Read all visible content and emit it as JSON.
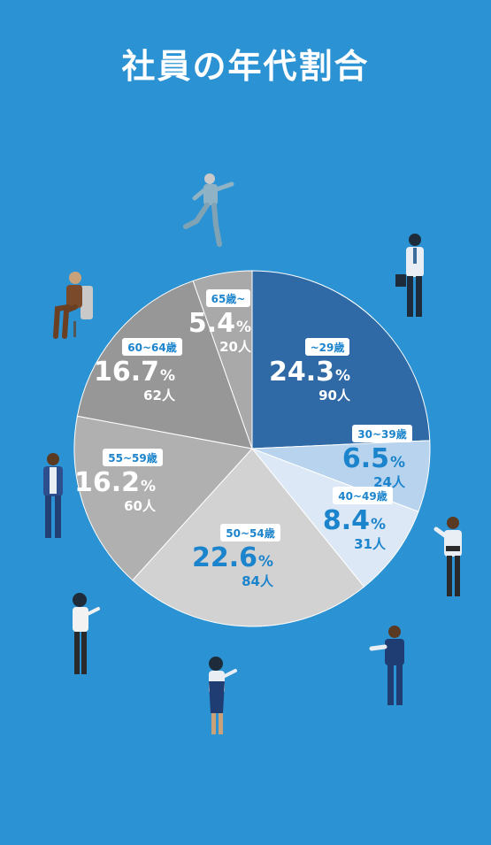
{
  "title": "社員の年代割合",
  "colors": {
    "background": "#2B92D3",
    "label_dark": "#1C84CC",
    "label_light": "#ffffff"
  },
  "chart_data": {
    "type": "pie",
    "title": "社員の年代割合",
    "unit_percent": "%",
    "unit_count": "人",
    "slices": [
      {
        "label": "~29歳",
        "percent": 24.3,
        "count": 90,
        "color": "#2F6AA6"
      },
      {
        "label": "30~39歳",
        "percent": 6.5,
        "count": 24,
        "color": "#B7D3EE"
      },
      {
        "label": "40~49歳",
        "percent": 8.4,
        "count": 31,
        "color": "#DCE8F5"
      },
      {
        "label": "50~54歳",
        "percent": 22.6,
        "count": 84,
        "color": "#D2D2D2"
      },
      {
        "label": "55~59歳",
        "percent": 16.2,
        "count": 60,
        "color": "#B0B0B0"
      },
      {
        "label": "60~64歳",
        "percent": 16.7,
        "count": 62,
        "color": "#979797"
      },
      {
        "label": "65歳~",
        "percent": 5.4,
        "count": 20,
        "color": "#A9A9A9"
      }
    ]
  }
}
